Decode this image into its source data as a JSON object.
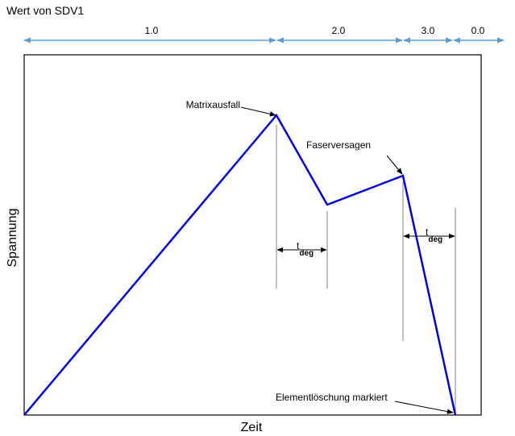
{
  "header": {
    "title": "Wert von SDV1"
  },
  "segments": [
    {
      "label": "1.0"
    },
    {
      "label": "2.0"
    },
    {
      "label": "3.0"
    },
    {
      "label": "0.0"
    }
  ],
  "annotations": {
    "matrix_failure": "Matrixausfall",
    "fiber_failure": "Faserversagen",
    "element_deletion": "Elementlöschung markiert"
  },
  "t_deg": {
    "main": "t",
    "sub": "deg"
  },
  "axes": {
    "y_label": "Spannung",
    "x_label": "Zeit"
  }
}
